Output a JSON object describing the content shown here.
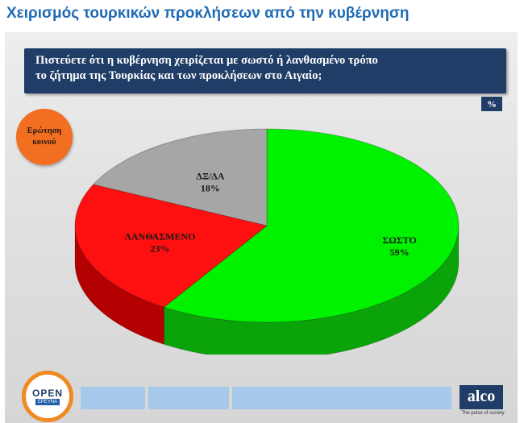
{
  "headline": "Χειρισμός τουρκικών προκλήσεων από την κυβέρνηση",
  "question": {
    "line1": "Πιστεύετε ότι η κυβέρνηση χειρίζεται με σωστό ή λανθασμένο τρόπο",
    "line2": "το ζήτημα της Τουρκίας και των  προκλήσεων στο Αιγαίο;"
  },
  "unit_badge": "%",
  "audience_badge": "Ερώτηση κοινού",
  "chart_data": {
    "type": "pie",
    "style": "3d",
    "slices": [
      {
        "label": "ΣΩΣΤΟ",
        "value": 59,
        "value_label": "59%",
        "color": "#00f200",
        "side_color": "#0aa30a"
      },
      {
        "label": "ΛΑΝΘΑΣΜΕΝΟ",
        "value": 23,
        "value_label": "23%",
        "color": "#ff1010",
        "side_color": "#b30000"
      },
      {
        "label": "ΔΞ/ΔΑ",
        "value": 18,
        "value_label": "18%",
        "color": "#a6a6a6",
        "side_color": "#6e6e6e"
      }
    ]
  },
  "footer": {
    "open_logo_word": "OPEN",
    "open_logo_sub": "ΕΡΕΥΝΑ",
    "alco_logo": "alco",
    "alco_tagline": "The pulse of society"
  }
}
